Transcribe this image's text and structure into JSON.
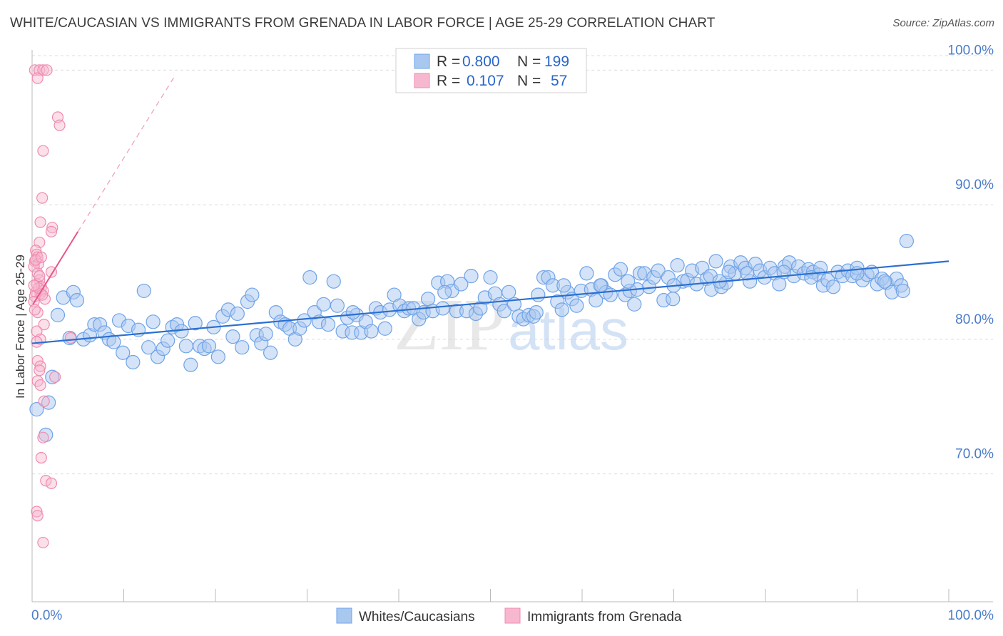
{
  "title": "WHITE/CAUCASIAN VS IMMIGRANTS FROM GRENADA IN LABOR FORCE | AGE 25-29 CORRELATION CHART",
  "source": "Source: ZipAtlas.com",
  "watermark": {
    "zip": "ZIP",
    "atlas": "atlas"
  },
  "chart_data": {
    "type": "scatter",
    "title": "WHITE/CAUCASIAN VS IMMIGRANTS FROM GRENADA IN LABOR FORCE | AGE 25-29 CORRELATION CHART",
    "xlabel": "",
    "ylabel": "In Labor Force | Age 25-29",
    "xlim": [
      0,
      100
    ],
    "ylim": [
      60.5,
      101.5
    ],
    "x_tick_labels": [
      "0.0%",
      "100.0%"
    ],
    "y_ticks": [
      70,
      80,
      90,
      100
    ],
    "y_tick_labels": [
      "70.0%",
      "80.0%",
      "90.0%",
      "100.0%"
    ],
    "grid": true,
    "legend": {
      "position": "top-center",
      "rows": [
        {
          "r_label": "R =",
          "r_value": "0.800",
          "n_label": "N =",
          "n_value": "199"
        },
        {
          "r_label": "R =",
          "r_value": "0.107",
          "n_label": "N =",
          "n_value": "57"
        }
      ]
    },
    "series": [
      {
        "name": "Whites/Caucasians",
        "color": "#6fa3e8",
        "fill": "#a9c8f0",
        "trend": {
          "x": [
            0,
            100
          ],
          "y": [
            79.7,
            85.8
          ],
          "color": "#2a6fd0"
        },
        "points": [
          [
            0.5,
            74.8
          ],
          [
            1.5,
            72.9
          ],
          [
            1.8,
            75.3
          ],
          [
            2.2,
            77.2
          ],
          [
            2.8,
            81.8
          ],
          [
            3.4,
            83.1
          ],
          [
            4.1,
            80.1
          ],
          [
            4.5,
            83.5
          ],
          [
            4.9,
            82.9
          ],
          [
            5.6,
            80.0
          ],
          [
            6.3,
            80.3
          ],
          [
            6.8,
            81.1
          ],
          [
            7.4,
            81.1
          ],
          [
            7.9,
            80.5
          ],
          [
            8.4,
            80.0
          ],
          [
            8.9,
            79.8
          ],
          [
            9.5,
            81.4
          ],
          [
            9.9,
            79.0
          ],
          [
            10.5,
            81.0
          ],
          [
            11.0,
            78.3
          ],
          [
            11.6,
            80.7
          ],
          [
            12.2,
            83.6
          ],
          [
            12.7,
            79.4
          ],
          [
            13.2,
            81.3
          ],
          [
            13.7,
            78.7
          ],
          [
            14.3,
            79.3
          ],
          [
            14.8,
            79.9
          ],
          [
            15.3,
            80.9
          ],
          [
            15.8,
            81.1
          ],
          [
            16.3,
            80.6
          ],
          [
            16.8,
            79.5
          ],
          [
            17.3,
            78.1
          ],
          [
            17.8,
            81.2
          ],
          [
            18.3,
            79.5
          ],
          [
            18.8,
            79.3
          ],
          [
            19.3,
            79.5
          ],
          [
            19.8,
            80.9
          ],
          [
            20.3,
            78.7
          ],
          [
            20.8,
            81.7
          ],
          [
            21.4,
            82.2
          ],
          [
            21.9,
            80.2
          ],
          [
            22.4,
            81.9
          ],
          [
            22.9,
            79.4
          ],
          [
            23.5,
            82.8
          ],
          [
            24.0,
            83.3
          ],
          [
            24.5,
            80.3
          ],
          [
            25.0,
            79.7
          ],
          [
            25.5,
            80.4
          ],
          [
            26.0,
            79.0
          ],
          [
            26.6,
            82.0
          ],
          [
            27.1,
            81.3
          ],
          [
            27.6,
            81.1
          ],
          [
            28.1,
            80.8
          ],
          [
            28.7,
            80.0
          ],
          [
            29.2,
            80.8
          ],
          [
            29.7,
            81.4
          ],
          [
            30.3,
            84.6
          ],
          [
            30.8,
            82.0
          ],
          [
            31.3,
            81.3
          ],
          [
            31.8,
            82.6
          ],
          [
            32.3,
            81.1
          ],
          [
            32.9,
            84.3
          ],
          [
            33.3,
            82.5
          ],
          [
            33.9,
            80.6
          ],
          [
            34.4,
            81.6
          ],
          [
            34.9,
            80.5
          ],
          [
            35.4,
            81.8
          ],
          [
            35.9,
            80.5
          ],
          [
            36.4,
            81.3
          ],
          [
            37.0,
            80.6
          ],
          [
            37.5,
            82.3
          ],
          [
            38.0,
            82.0
          ],
          [
            38.5,
            80.8
          ],
          [
            39.0,
            82.2
          ],
          [
            39.5,
            83.3
          ],
          [
            40.1,
            82.5
          ],
          [
            40.6,
            82.1
          ],
          [
            41.1,
            82.3
          ],
          [
            41.6,
            82.3
          ],
          [
            42.2,
            81.5
          ],
          [
            42.7,
            82.0
          ],
          [
            43.2,
            83.0
          ],
          [
            43.7,
            82.1
          ],
          [
            44.3,
            84.2
          ],
          [
            44.8,
            82.3
          ],
          [
            45.3,
            84.3
          ],
          [
            45.8,
            83.6
          ],
          [
            46.3,
            82.1
          ],
          [
            46.8,
            84.1
          ],
          [
            47.4,
            82.1
          ],
          [
            47.9,
            84.7
          ],
          [
            48.4,
            81.9
          ],
          [
            48.9,
            82.3
          ],
          [
            49.4,
            83.1
          ],
          [
            50.0,
            84.6
          ],
          [
            50.5,
            83.4
          ],
          [
            51.0,
            82.6
          ],
          [
            51.5,
            82.1
          ],
          [
            52.0,
            83.5
          ],
          [
            52.6,
            82.6
          ],
          [
            53.1,
            81.7
          ],
          [
            53.6,
            81.5
          ],
          [
            54.2,
            81.8
          ],
          [
            54.7,
            81.7
          ],
          [
            55.2,
            83.3
          ],
          [
            55.8,
            84.6
          ],
          [
            56.3,
            84.6
          ],
          [
            56.8,
            84.0
          ],
          [
            57.3,
            82.8
          ],
          [
            57.8,
            82.2
          ],
          [
            58.4,
            83.5
          ],
          [
            58.9,
            83.0
          ],
          [
            59.4,
            82.5
          ],
          [
            59.9,
            83.6
          ],
          [
            60.5,
            84.9
          ],
          [
            61.0,
            83.7
          ],
          [
            61.5,
            82.9
          ],
          [
            62.1,
            84.0
          ],
          [
            62.6,
            83.5
          ],
          [
            63.1,
            83.3
          ],
          [
            63.6,
            84.8
          ],
          [
            64.2,
            85.2
          ],
          [
            64.7,
            83.3
          ],
          [
            65.2,
            83.6
          ],
          [
            65.7,
            82.6
          ],
          [
            66.3,
            84.9
          ],
          [
            66.8,
            84.9
          ],
          [
            67.3,
            83.9
          ],
          [
            67.8,
            84.6
          ],
          [
            68.3,
            85.1
          ],
          [
            68.9,
            82.9
          ],
          [
            69.4,
            84.6
          ],
          [
            69.9,
            83.0
          ],
          [
            70.4,
            85.5
          ],
          [
            71.0,
            84.3
          ],
          [
            71.5,
            84.4
          ],
          [
            72.0,
            85.1
          ],
          [
            72.5,
            84.1
          ],
          [
            73.1,
            85.3
          ],
          [
            73.6,
            84.5
          ],
          [
            74.1,
            83.7
          ],
          [
            74.6,
            85.8
          ],
          [
            75.2,
            83.9
          ],
          [
            75.7,
            84.2
          ],
          [
            76.2,
            85.4
          ],
          [
            76.7,
            84.9
          ],
          [
            77.3,
            85.7
          ],
          [
            77.8,
            85.3
          ],
          [
            78.3,
            84.3
          ],
          [
            78.9,
            85.6
          ],
          [
            79.4,
            85.1
          ],
          [
            79.9,
            84.6
          ],
          [
            80.5,
            85.3
          ],
          [
            81.0,
            84.9
          ],
          [
            81.5,
            84.1
          ],
          [
            82.1,
            85.4
          ],
          [
            82.6,
            85.7
          ],
          [
            83.1,
            84.7
          ],
          [
            83.6,
            85.4
          ],
          [
            84.2,
            84.9
          ],
          [
            84.7,
            85.2
          ],
          [
            85.2,
            85.0
          ],
          [
            85.8,
            84.8
          ],
          [
            86.3,
            84.0
          ],
          [
            86.8,
            84.4
          ],
          [
            87.4,
            83.9
          ],
          [
            87.9,
            85.0
          ],
          [
            88.4,
            84.7
          ],
          [
            89.0,
            85.1
          ],
          [
            89.5,
            84.7
          ],
          [
            90.0,
            85.3
          ],
          [
            90.6,
            84.4
          ],
          [
            91.1,
            84.8
          ],
          [
            91.6,
            85.0
          ],
          [
            92.2,
            84.1
          ],
          [
            92.7,
            84.5
          ],
          [
            93.2,
            84.2
          ],
          [
            93.8,
            83.5
          ],
          [
            94.3,
            84.5
          ],
          [
            94.8,
            84.0
          ],
          [
            95.4,
            87.3
          ],
          [
            76.0,
            85.0
          ],
          [
            58.0,
            84.0
          ],
          [
            62.0,
            84.0
          ],
          [
            66.0,
            83.7
          ],
          [
            70.0,
            84.0
          ],
          [
            74.0,
            84.7
          ],
          [
            78.0,
            84.9
          ],
          [
            82.0,
            85.0
          ],
          [
            86.0,
            85.3
          ],
          [
            90.0,
            84.9
          ],
          [
            93.0,
            84.3
          ],
          [
            35.0,
            82.0
          ],
          [
            45.0,
            83.5
          ],
          [
            55.0,
            82.0
          ],
          [
            65.0,
            84.3
          ],
          [
            75.0,
            84.3
          ],
          [
            85.0,
            84.6
          ],
          [
            95.0,
            83.6
          ]
        ]
      },
      {
        "name": "Immigrants from Grenada",
        "color": "#f08bb0",
        "fill": "#f7b8cf",
        "trend": {
          "x": [
            0.1,
            5.0
          ],
          "y": [
            82.6,
            88.0
          ],
          "color": "#e8558a",
          "dash_to": {
            "x": 15.6,
            "y": 99.6
          }
        },
        "points": [
          [
            0.3,
            100.0
          ],
          [
            0.8,
            100.0
          ],
          [
            1.2,
            100.0
          ],
          [
            1.6,
            100.0
          ],
          [
            0.6,
            99.4
          ],
          [
            2.8,
            96.5
          ],
          [
            3.0,
            95.9
          ],
          [
            1.2,
            94.0
          ],
          [
            1.1,
            90.5
          ],
          [
            0.9,
            88.7
          ],
          [
            2.2,
            88.3
          ],
          [
            2.1,
            88.0
          ],
          [
            0.8,
            87.2
          ],
          [
            0.4,
            86.6
          ],
          [
            0.5,
            86.3
          ],
          [
            0.6,
            86.1
          ],
          [
            0.3,
            85.8
          ],
          [
            0.7,
            85.6
          ],
          [
            0.2,
            85.4
          ],
          [
            2.1,
            85.0
          ],
          [
            0.6,
            84.9
          ],
          [
            0.8,
            84.4
          ],
          [
            0.5,
            84.1
          ],
          [
            1.0,
            83.9
          ],
          [
            1.2,
            83.6
          ],
          [
            0.4,
            83.5
          ],
          [
            0.9,
            83.4
          ],
          [
            0.3,
            83.2
          ],
          [
            1.4,
            83.0
          ],
          [
            0.2,
            82.8
          ],
          [
            0.6,
            82.0
          ],
          [
            1.3,
            81.1
          ],
          [
            0.5,
            80.6
          ],
          [
            0.9,
            80.0
          ],
          [
            4.2,
            80.1
          ],
          [
            0.6,
            78.4
          ],
          [
            0.9,
            78.0
          ],
          [
            0.8,
            77.7
          ],
          [
            2.5,
            77.2
          ],
          [
            0.6,
            76.9
          ],
          [
            0.9,
            76.6
          ],
          [
            1.3,
            75.4
          ],
          [
            1.2,
            72.7
          ],
          [
            1.0,
            71.2
          ],
          [
            1.5,
            69.5
          ],
          [
            2.1,
            69.3
          ],
          [
            0.5,
            67.2
          ],
          [
            0.6,
            66.9
          ],
          [
            1.2,
            64.9
          ],
          [
            0.4,
            85.9
          ],
          [
            0.7,
            83.8
          ],
          [
            0.3,
            82.2
          ],
          [
            1.0,
            86.1
          ],
          [
            0.8,
            84.7
          ],
          [
            0.5,
            79.8
          ],
          [
            1.1,
            83.3
          ],
          [
            0.2,
            84.0
          ]
        ]
      }
    ]
  },
  "bottom_legend": [
    {
      "label": "Whites/Caucasians",
      "color": "#6fa3e8",
      "fill": "#a9c8f0"
    },
    {
      "label": "Immigrants from Grenada",
      "color": "#f08bb0",
      "fill": "#f7b8cf"
    }
  ]
}
